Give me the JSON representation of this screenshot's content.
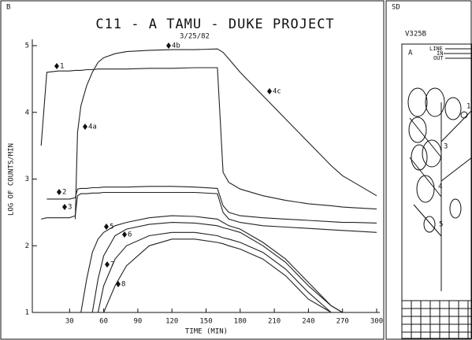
{
  "chart_data": {
    "type": "line",
    "corner_label": "B",
    "title": "C11 - A TAMU - DUKE PROJECT",
    "subtitle": "3/25/82",
    "x_label": "TIME (MIN)",
    "y_label": "LOG OF COUNTS/MIN",
    "x": [
      0,
      5,
      10,
      20,
      30,
      35,
      37,
      40,
      45,
      50,
      55,
      60,
      70,
      80,
      100,
      120,
      140,
      160,
      165,
      170,
      180,
      200,
      220,
      240,
      260,
      270,
      280,
      300
    ],
    "series": [
      {
        "name": "1",
        "color": "#222",
        "values": [
          null,
          3.5,
          4.6,
          4.62,
          4.62,
          4.63,
          4.63,
          4.63,
          4.64,
          4.64,
          4.65,
          4.65,
          4.65,
          4.65,
          4.66,
          4.66,
          4.67,
          4.67,
          3.1,
          2.95,
          2.85,
          2.75,
          2.68,
          2.63,
          2.6,
          2.58,
          2.57,
          2.55
        ]
      },
      {
        "name": "2",
        "color": "#222",
        "values": [
          null,
          null,
          2.7,
          2.7,
          2.7,
          2.72,
          2.85,
          2.86,
          2.86,
          2.87,
          2.87,
          2.88,
          2.88,
          2.88,
          2.89,
          2.89,
          2.88,
          2.86,
          2.6,
          2.5,
          2.45,
          2.42,
          2.4,
          2.38,
          2.36,
          2.35,
          2.35,
          2.34
        ]
      },
      {
        "name": "3",
        "color": "#222",
        "values": [
          null,
          2.4,
          2.42,
          2.42,
          2.42,
          2.45,
          2.75,
          2.78,
          2.78,
          2.79,
          2.79,
          2.8,
          2.8,
          2.8,
          2.8,
          2.8,
          2.8,
          2.78,
          2.5,
          2.4,
          2.35,
          2.3,
          2.28,
          2.26,
          2.24,
          2.23,
          2.22,
          2.2
        ]
      },
      {
        "name": "4",
        "color": "#222",
        "values": [
          null,
          null,
          null,
          null,
          null,
          2.4,
          3.7,
          4.1,
          4.4,
          4.6,
          4.75,
          4.82,
          4.88,
          4.91,
          4.93,
          4.94,
          4.94,
          4.95,
          4.9,
          4.8,
          4.6,
          4.25,
          3.9,
          3.55,
          3.2,
          3.05,
          2.95,
          2.75
        ]
      },
      {
        "name": "5",
        "color": "#222",
        "values": [
          null,
          null,
          null,
          null,
          null,
          null,
          null,
          1.0,
          1.5,
          1.9,
          2.1,
          2.2,
          2.3,
          2.35,
          2.42,
          2.45,
          2.44,
          2.4,
          2.35,
          2.3,
          2.25,
          2.05,
          1.8,
          1.45,
          1.1,
          1.0,
          null,
          null
        ]
      },
      {
        "name": "6",
        "color": "#222",
        "values": [
          null,
          null,
          null,
          null,
          null,
          null,
          null,
          null,
          null,
          1.0,
          1.5,
          1.85,
          2.15,
          2.25,
          2.32,
          2.35,
          2.34,
          2.3,
          2.27,
          2.25,
          2.2,
          2.0,
          1.75,
          1.4,
          1.1,
          1.0,
          null,
          null
        ]
      },
      {
        "name": "7",
        "color": "#222",
        "values": [
          null,
          null,
          null,
          null,
          null,
          null,
          null,
          null,
          null,
          null,
          1.0,
          1.4,
          1.8,
          2.0,
          2.15,
          2.2,
          2.2,
          2.15,
          2.12,
          2.1,
          2.05,
          1.9,
          1.65,
          1.3,
          1.0,
          null,
          null,
          null
        ]
      },
      {
        "name": "8",
        "color": "#222",
        "values": [
          null,
          null,
          null,
          null,
          null,
          null,
          null,
          null,
          null,
          null,
          null,
          1.0,
          1.4,
          1.7,
          2.0,
          2.1,
          2.1,
          2.05,
          2.03,
          2.0,
          1.95,
          1.8,
          1.55,
          1.2,
          1.0,
          null,
          null,
          null
        ]
      }
    ],
    "annotations": [
      "1",
      "2",
      "3",
      "4a",
      "4b",
      "4c",
      "5",
      "6",
      "7",
      "8"
    ],
    "xlim": [
      0,
      300
    ],
    "ylim": [
      1,
      5
    ],
    "xticks": [
      30,
      60,
      90,
      120,
      150,
      180,
      210,
      240,
      270,
      300
    ],
    "yticks": [
      1,
      2,
      3,
      4,
      5
    ],
    "grid": false
  },
  "side_panel": {
    "corner_label": "SD",
    "title": "V325B",
    "panel_label": "A",
    "line_label": "LINE",
    "in_label": "IN",
    "out_label": "OUT",
    "numbers": [
      "1",
      "3",
      "4",
      "5"
    ]
  }
}
